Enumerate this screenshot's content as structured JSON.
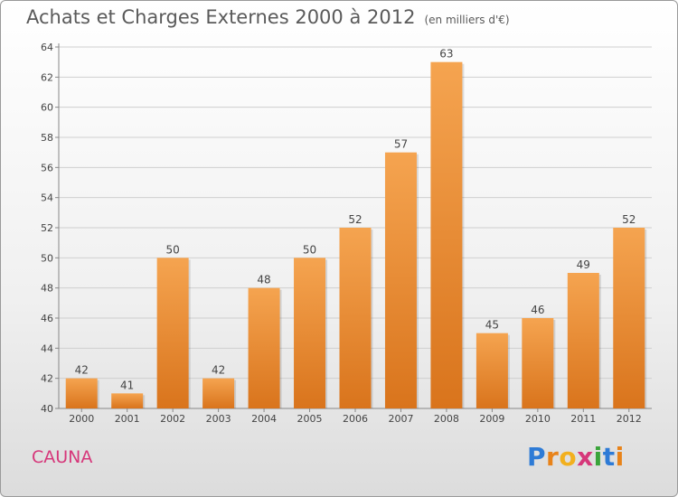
{
  "title": "Achats et Charges Externes 2000 à 2012",
  "unit": "(en milliers d'€)",
  "commune": "CAUNA",
  "logo": {
    "text": "Proxiti",
    "letters": [
      "P",
      "r",
      "o",
      "x",
      "i",
      "t",
      "i"
    ],
    "colors": [
      "#2e7bd6",
      "#e8831a",
      "#f2b01e",
      "#d6377a",
      "#3aa43a",
      "#2e7bd6",
      "#e8831a"
    ]
  },
  "colors": {
    "bar_top": "#f5a450",
    "bar_bottom": "#d9741c",
    "grid": "#cfcfcf",
    "text": "#444444",
    "commune": "#d6377a"
  },
  "chart_data": {
    "type": "bar",
    "title": "Achats et Charges Externes 2000 à 2012",
    "categories": [
      "2000",
      "2001",
      "2002",
      "2003",
      "2004",
      "2005",
      "2006",
      "2007",
      "2008",
      "2009",
      "2010",
      "2011",
      "2012"
    ],
    "values": [
      42,
      41,
      50,
      42,
      48,
      50,
      52,
      57,
      63,
      45,
      46,
      49,
      52
    ],
    "ylim": [
      40,
      64
    ],
    "yticks": [
      40,
      42,
      44,
      46,
      48,
      50,
      52,
      54,
      56,
      58,
      60,
      62,
      64
    ],
    "grid": true,
    "xlabel": "",
    "ylabel": ""
  }
}
